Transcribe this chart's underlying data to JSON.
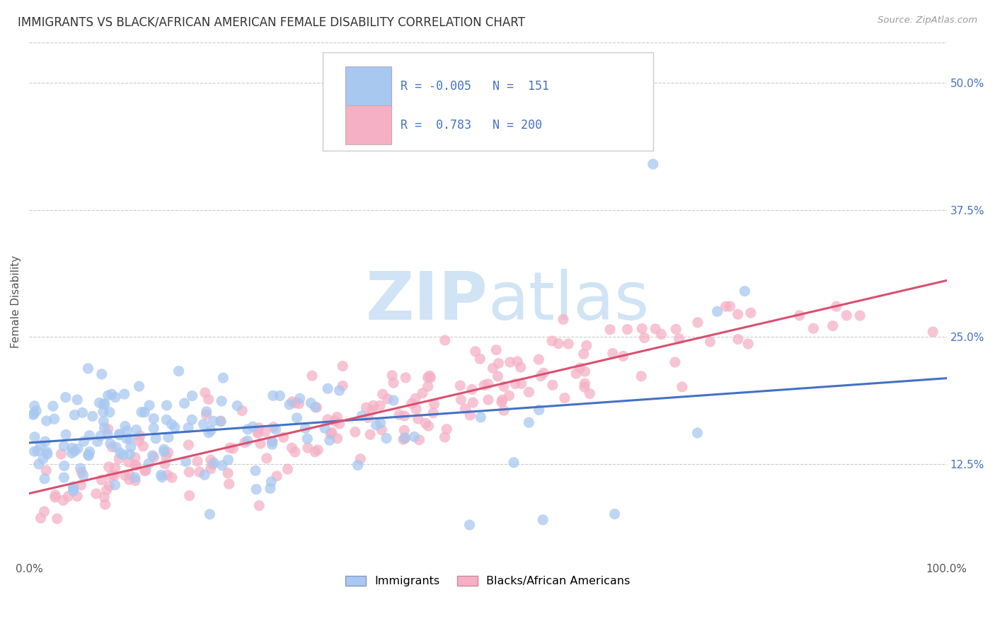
{
  "title": "IMMIGRANTS VS BLACK/AFRICAN AMERICAN FEMALE DISABILITY CORRELATION CHART",
  "source": "Source: ZipAtlas.com",
  "ylabel": "Female Disability",
  "legend_label1": "Immigrants",
  "legend_label2": "Blacks/African Americans",
  "corr1_r": "-0.005",
  "corr1_n": "151",
  "corr2_r": "0.783",
  "corr2_n": "200",
  "color_immigrants": "#a8c8f0",
  "color_black": "#f5b0c5",
  "color_line_immigrants": "#4472c4",
  "color_line_black": "#d94f70",
  "watermark_color": "#d0e4f5",
  "background_color": "#ffffff",
  "grid_color": "#cccccc",
  "title_color": "#333333",
  "source_color": "#999999",
  "ytick_color": "#4472c4",
  "seed": 7,
  "n_immigrants": 151,
  "n_black": 200,
  "xlim": [
    0.0,
    1.0
  ],
  "ylim": [
    0.03,
    0.54
  ],
  "ytick_positions": [
    0.125,
    0.25,
    0.375,
    0.5
  ],
  "ytick_labels": [
    "12.5%",
    "25.0%",
    "37.5%",
    "50.0%"
  ]
}
